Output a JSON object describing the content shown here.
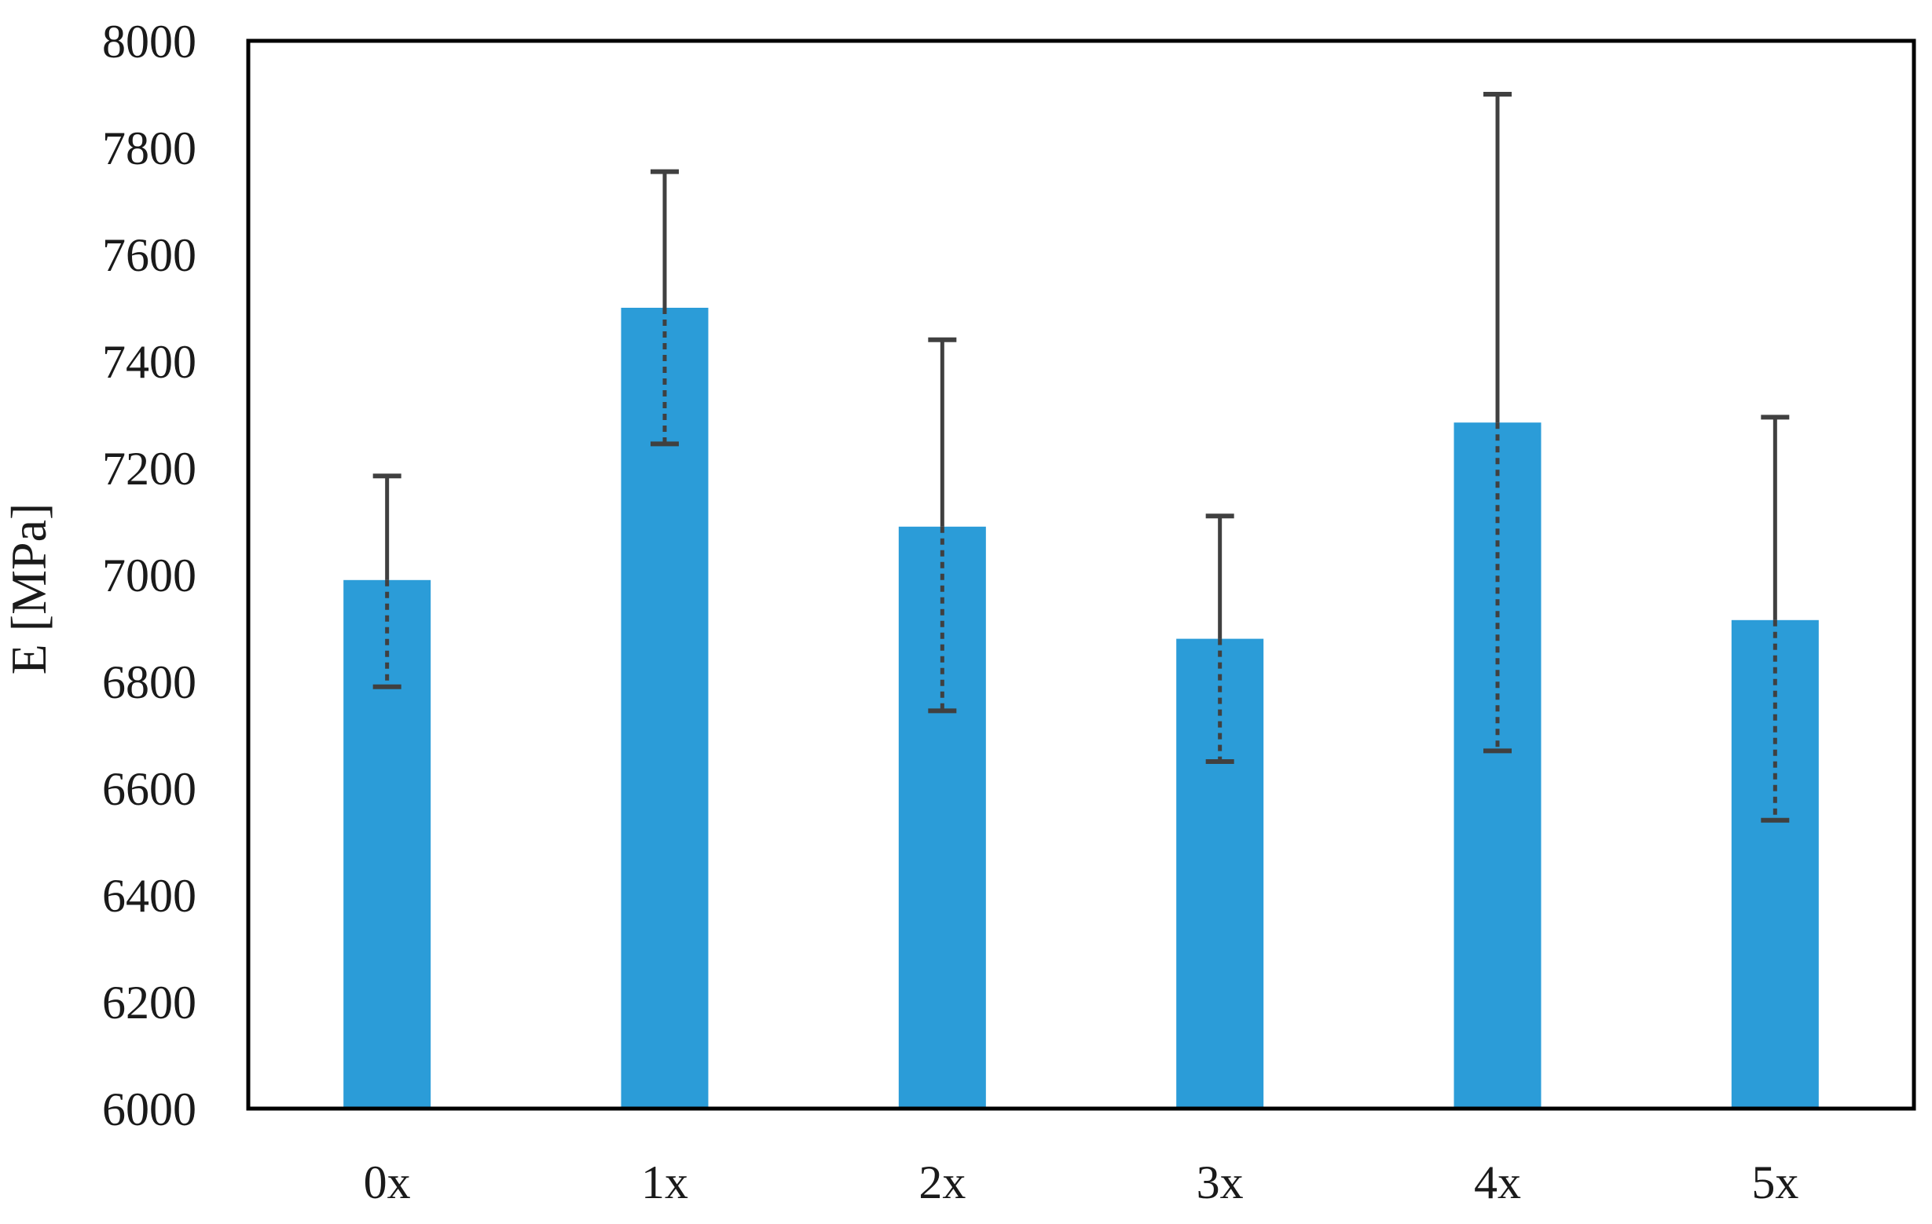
{
  "figure": {
    "ylabel": "E [MPa]"
  },
  "chart_data": {
    "type": "bar",
    "title": "",
    "xlabel": "",
    "ylabel": "E [MPa]",
    "categories": [
      "0x",
      "1x",
      "2x",
      "3x",
      "4x",
      "5x"
    ],
    "values": [
      6990,
      7500,
      7090,
      6880,
      7285,
      6915
    ],
    "error_bar_top": [
      7185,
      7755,
      7440,
      7110,
      7900,
      7295
    ],
    "error_bar_bottom": [
      6790,
      7245,
      6745,
      6650,
      6670,
      6540
    ],
    "ylim": [
      6000,
      8000
    ],
    "yticks": [
      6000,
      6200,
      6400,
      6600,
      6800,
      7000,
      7200,
      7400,
      7600,
      7800,
      8000
    ],
    "grid": false,
    "legend": null,
    "bar_color": "#2B9CD8",
    "error_bar_color": "#404040",
    "frame_color": "#000000",
    "tick_label_color": "#1a1a1a"
  }
}
